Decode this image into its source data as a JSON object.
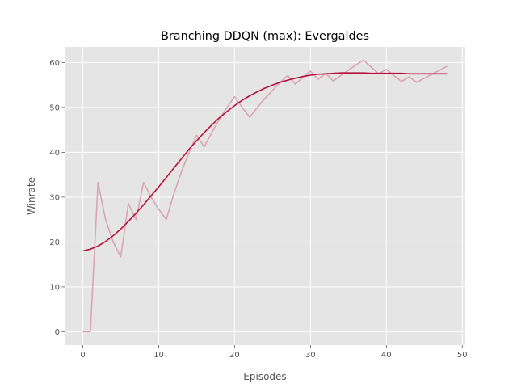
{
  "chart_data": {
    "type": "line",
    "title": "Branching DDQN (max): Evergaldes",
    "xlabel": "Episodes",
    "ylabel": "Winrate",
    "xlim": [
      -2.4,
      50.4
    ],
    "ylim": [
      -3.0,
      63.5
    ],
    "xticks": [
      0,
      10,
      20,
      30,
      40,
      50
    ],
    "yticks": [
      0,
      10,
      20,
      30,
      40,
      50,
      60
    ],
    "grid": true,
    "background": "#e5e5e5",
    "series": [
      {
        "role": "raw",
        "color": "#dba3b6",
        "x": [
          0,
          1,
          2,
          3,
          4,
          5,
          6,
          7,
          8,
          9,
          10,
          11,
          12,
          13,
          14,
          15,
          16,
          17,
          18,
          19,
          20,
          21,
          22,
          23,
          24,
          25,
          26,
          27,
          28,
          29,
          30,
          31,
          32,
          33,
          34,
          35,
          36,
          37,
          38,
          39,
          40,
          41,
          42,
          43,
          44,
          45,
          46,
          47,
          48
        ],
        "values": [
          0,
          0,
          33.3,
          25,
          20,
          16.7,
          28.6,
          25,
          33.3,
          30,
          27.3,
          25,
          30.8,
          35.7,
          40,
          43.8,
          41.2,
          44.4,
          47.4,
          50,
          52.4,
          50,
          47.8,
          50,
          52,
          53.8,
          55.6,
          57.1,
          55.2,
          56.7,
          58.1,
          56.3,
          57.6,
          55.9,
          57.1,
          58.3,
          59.5,
          60.5,
          59,
          57.5,
          58.5,
          57.1,
          55.8,
          56.8,
          55.6,
          56.5,
          57.4,
          58.3,
          59.2
        ]
      },
      {
        "role": "smoothed",
        "color": "#b5123e",
        "x": [
          0,
          1,
          2,
          3,
          4,
          5,
          6,
          7,
          8,
          9,
          10,
          11,
          12,
          13,
          14,
          15,
          16,
          17,
          18,
          19,
          20,
          21,
          22,
          23,
          24,
          25,
          26,
          27,
          28,
          29,
          30,
          31,
          32,
          33,
          34,
          35,
          36,
          37,
          38,
          39,
          40,
          41,
          42,
          43,
          44,
          45,
          46,
          47,
          48
        ],
        "values": [
          18,
          18.4,
          19.1,
          20.1,
          21.4,
          22.9,
          24.6,
          26.4,
          28.3,
          30.3,
          32.3,
          34.4,
          36.5,
          38.6,
          40.7,
          42.6,
          44.4,
          46.1,
          47.7,
          49.1,
          50.4,
          51.6,
          52.6,
          53.5,
          54.3,
          55,
          55.6,
          56.1,
          56.5,
          56.9,
          57.2,
          57.4,
          57.5,
          57.6,
          57.7,
          57.7,
          57.7,
          57.7,
          57.6,
          57.6,
          57.6,
          57.6,
          57.6,
          57.5,
          57.5,
          57.5,
          57.5,
          57.5,
          57.5
        ]
      }
    ]
  }
}
